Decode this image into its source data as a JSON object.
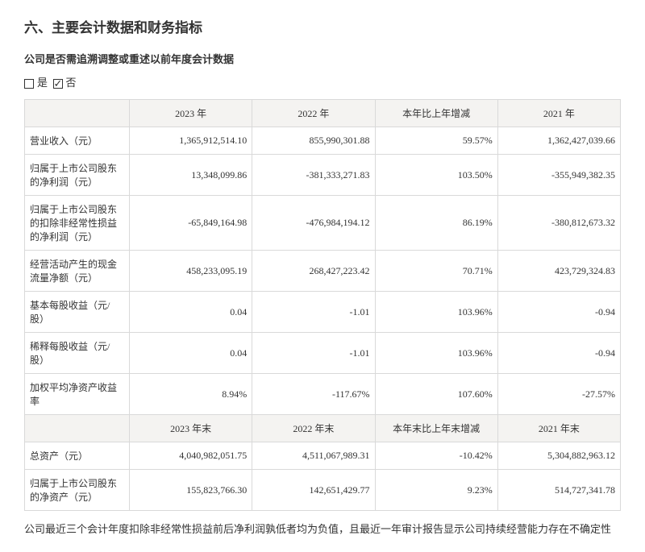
{
  "heading": "六、主要会计数据和财务指标",
  "subheading": "公司是否需追溯调整或重述以前年度会计数据",
  "checks": {
    "yes": "是",
    "no": "否",
    "selected": "no"
  },
  "header1": {
    "blank": "",
    "c1": "2023 年",
    "c2": "2022 年",
    "c3": "本年比上年增减",
    "c4": "2021 年"
  },
  "rows": [
    {
      "label": "营业收入（元）",
      "v1": "1,365,912,514.10",
      "v2": "855,990,301.88",
      "chg": "59.57%",
      "v4": "1,362,427,039.66"
    },
    {
      "label": "归属于上市公司股东的净利润（元）",
      "v1": "13,348,099.86",
      "v2": "-381,333,271.83",
      "chg": "103.50%",
      "v4": "-355,949,382.35"
    },
    {
      "label": "归属于上市公司股东的扣除非经常性损益的净利润（元）",
      "v1": "-65,849,164.98",
      "v2": "-476,984,194.12",
      "chg": "86.19%",
      "v4": "-380,812,673.32"
    },
    {
      "label": "经营活动产生的现金流量净额（元）",
      "v1": "458,233,095.19",
      "v2": "268,427,223.42",
      "chg": "70.71%",
      "v4": "423,729,324.83"
    },
    {
      "label": "基本每股收益（元/股）",
      "v1": "0.04",
      "v2": "-1.01",
      "chg": "103.96%",
      "v4": "-0.94"
    },
    {
      "label": "稀释每股收益（元/股）",
      "v1": "0.04",
      "v2": "-1.01",
      "chg": "103.96%",
      "v4": "-0.94"
    },
    {
      "label": "加权平均净资产收益率",
      "v1": "8.94%",
      "v2": "-117.67%",
      "chg": "107.60%",
      "v4": "-27.57%"
    }
  ],
  "header2": {
    "blank": "",
    "c1": "2023 年末",
    "c2": "2022 年末",
    "c3": "本年末比上年末增减",
    "c4": "2021 年末"
  },
  "rows2": [
    {
      "label": "总资产（元）",
      "v1": "4,040,982,051.75",
      "v2": "4,511,067,989.31",
      "chg": "-10.42%",
      "v4": "5,304,882,963.12"
    },
    {
      "label": "归属于上市公司股东的净资产（元）",
      "v1": "155,823,766.30",
      "v2": "142,651,429.77",
      "chg": "9.23%",
      "v4": "514,727,341.78"
    }
  ],
  "footnote": "公司最近三个会计年度扣除非经常性损益前后净利润孰低者均为负值，且最近一年审计报告显示公司持续经营能力存在不确定性"
}
